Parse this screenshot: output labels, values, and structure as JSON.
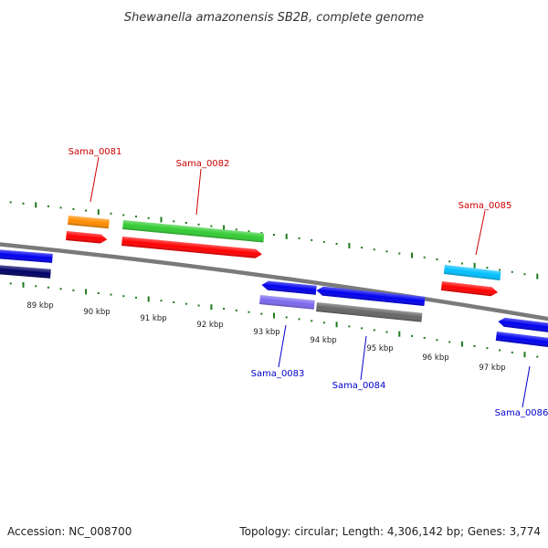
{
  "title": "Shewanella amazonensis SB2B, complete genome",
  "footer": {
    "accession": "Accession: NC_008700",
    "summary": "Topology: circular; Length: 4,306,142 bp; Genes: 3,774"
  },
  "colors": {
    "backbone": "#7a7a7a",
    "tick": "#1f7a1f",
    "label_forward": "#cc0000",
    "label_reverse": "#0000cc"
  },
  "scale_labels": [
    "89 kbp",
    "90 kbp",
    "91 kbp",
    "92 kbp",
    "93 kbp",
    "94 kbp",
    "95 kbp",
    "96 kbp",
    "97 kbp"
  ],
  "gene_labels": [
    {
      "name": "Sama_0081",
      "strand": "forward"
    },
    {
      "name": "Sama_0082",
      "strand": "forward"
    },
    {
      "name": "Sama_0085",
      "strand": "forward"
    },
    {
      "name": "Sama_0083",
      "strand": "reverse"
    },
    {
      "name": "Sama_0084",
      "strand": "reverse"
    },
    {
      "name": "Sama_0086",
      "strand": "reverse"
    }
  ],
  "features": [
    {
      "color": "#ff8c00",
      "strand": "forward",
      "arrow": false
    },
    {
      "color": "#ff0000",
      "strand": "forward",
      "arrow": true
    },
    {
      "color": "#33cc33",
      "strand": "forward",
      "arrow": false
    },
    {
      "color": "#ff0000",
      "strand": "forward",
      "arrow": true
    },
    {
      "color": "#00bfff",
      "strand": "forward",
      "arrow": false
    },
    {
      "color": "#ff0000",
      "strand": "forward",
      "arrow": true
    },
    {
      "color": "#0000ee",
      "strand": "reverse",
      "arrow": false
    },
    {
      "color": "#000066",
      "strand": "reverse",
      "arrow": false
    },
    {
      "color": "#0000ee",
      "strand": "reverse",
      "arrow": true
    },
    {
      "color": "#7b68ee",
      "strand": "reverse",
      "arrow": false
    },
    {
      "color": "#0000ee",
      "strand": "reverse",
      "arrow": true
    },
    {
      "color": "#666666",
      "strand": "reverse",
      "arrow": false
    },
    {
      "color": "#0000ee",
      "strand": "reverse",
      "arrow": true
    },
    {
      "color": "#0000ee",
      "strand": "reverse",
      "arrow": false
    }
  ]
}
